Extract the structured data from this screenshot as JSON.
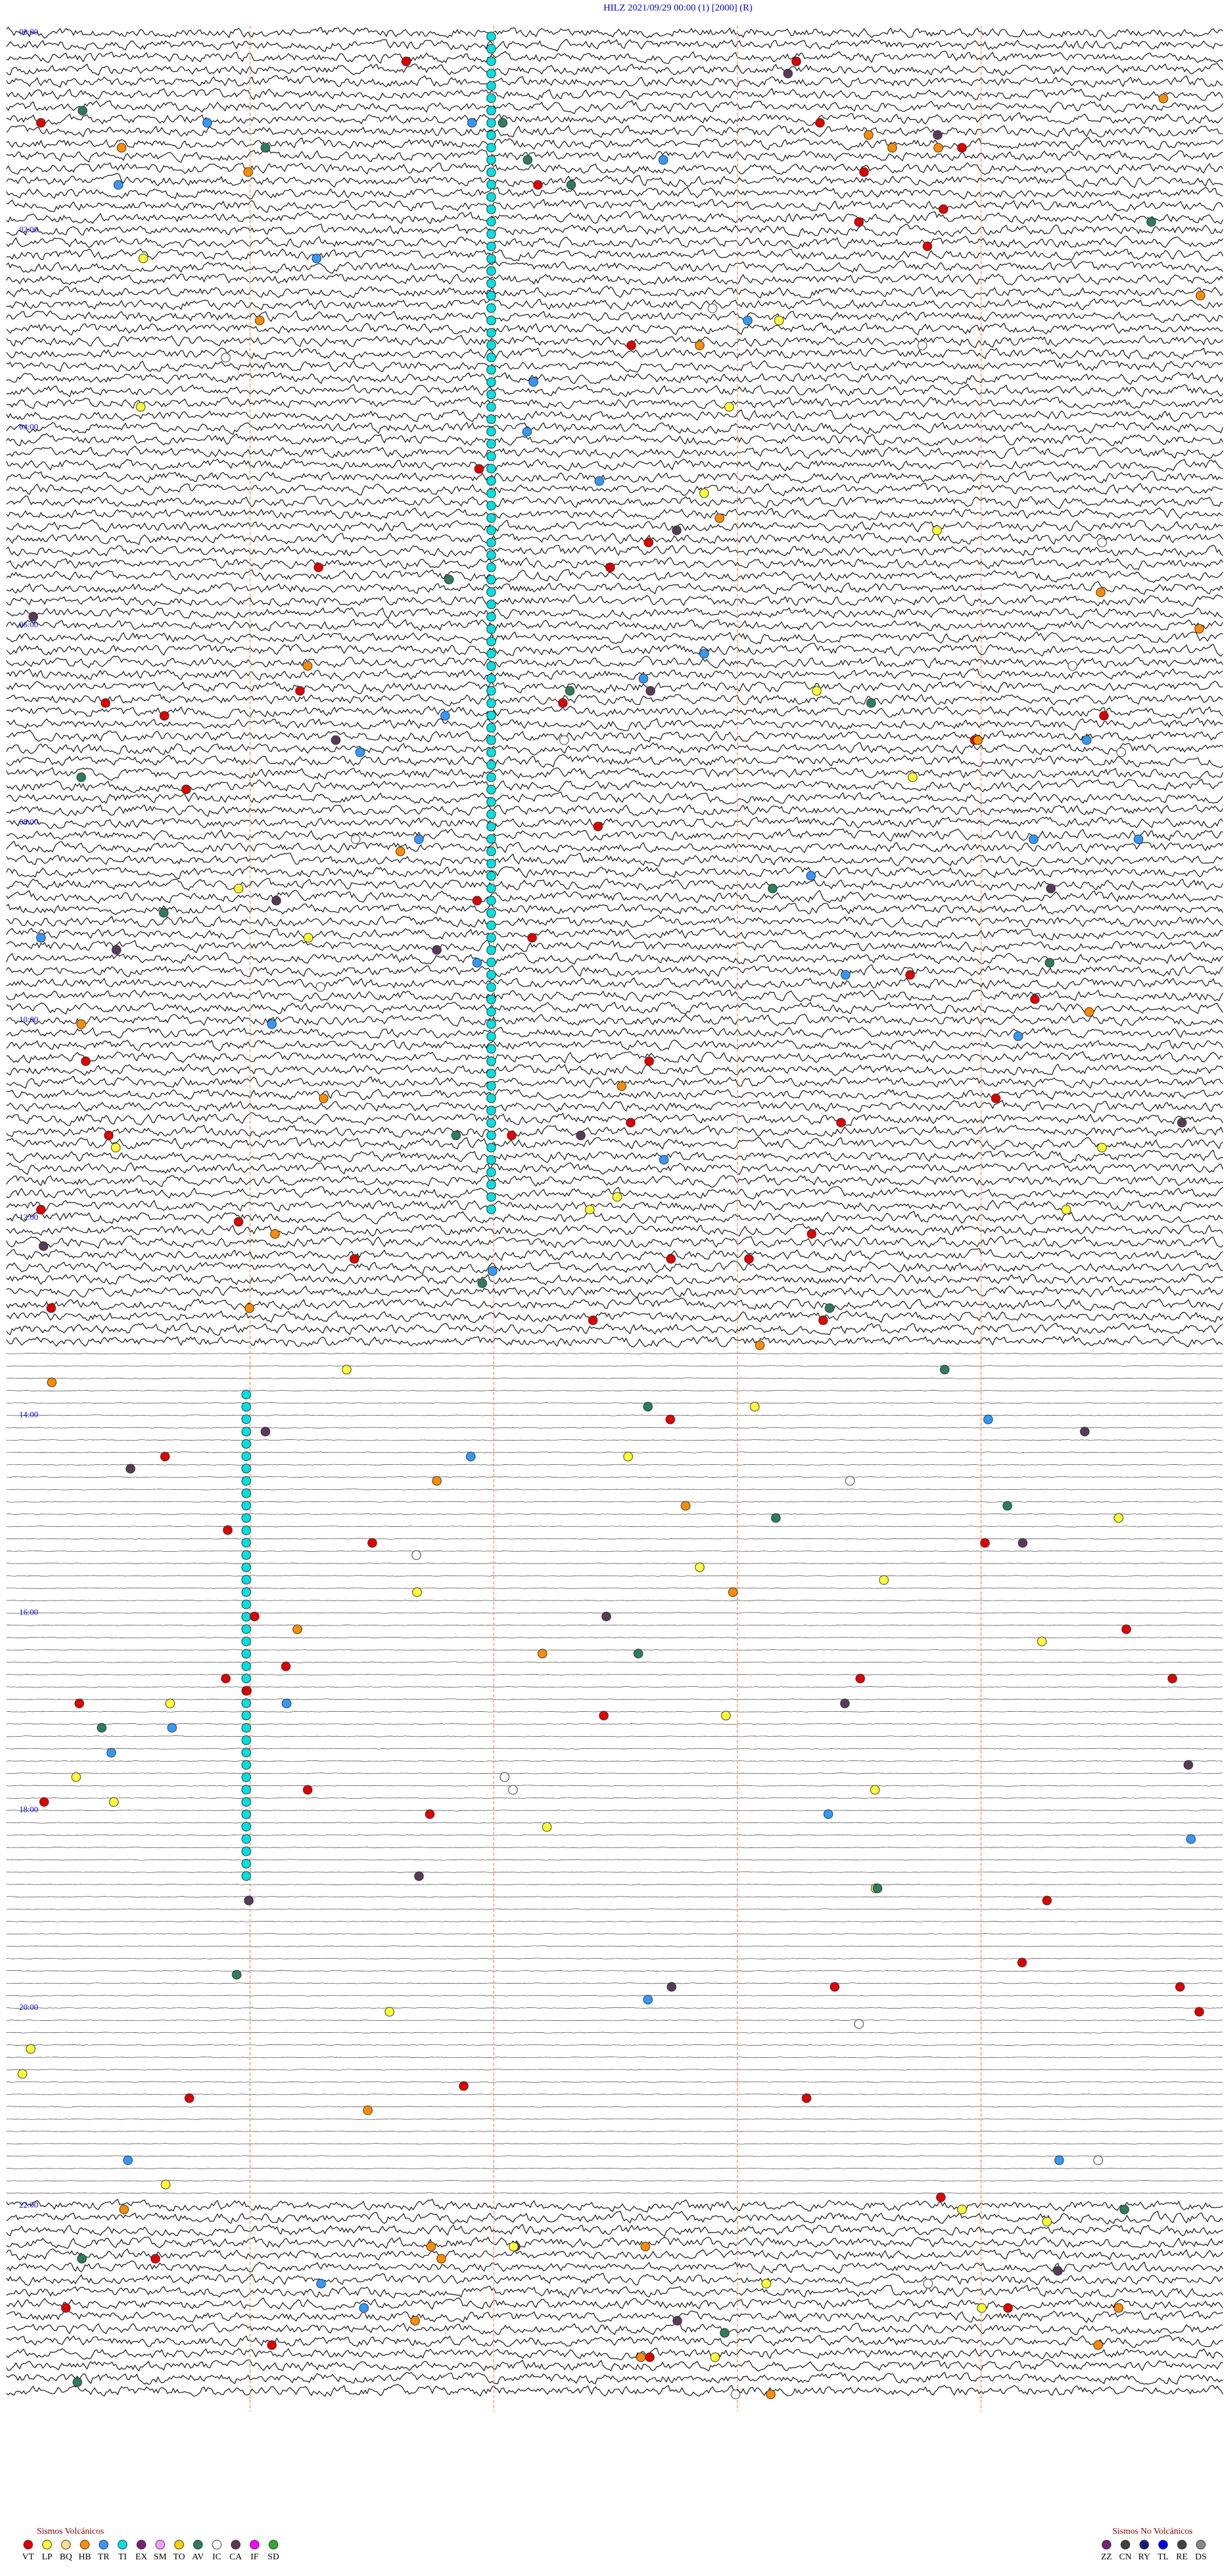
{
  "header": {
    "title": "HILZ    2021/09/29 00:00    (1)    [2000]    (R)"
  },
  "hour_labels": [
    "00:00",
    "02:00",
    "04:00",
    "06:00",
    "08:00",
    "10:00",
    "12:00",
    "14:00",
    "16:00",
    "18:00",
    "20:00",
    "22:00"
  ],
  "legend": {
    "volcanic": {
      "title": "Sismos Volcánicos",
      "items": [
        {
          "code": "VT",
          "color": "#e00000"
        },
        {
          "code": "LP",
          "color": "#ffff33"
        },
        {
          "code": "BQ",
          "color": "#ffe08a"
        },
        {
          "code": "HB",
          "color": "#ff8c00"
        },
        {
          "code": "TR",
          "color": "#3399ff"
        },
        {
          "code": "TI",
          "color": "#00e0e0"
        },
        {
          "code": "EX",
          "color": "#7a1f7a"
        },
        {
          "code": "SM",
          "color": "#ff99ff"
        },
        {
          "code": "TO",
          "color": "#ffcc00"
        },
        {
          "code": "AV",
          "color": "#2e7d5b"
        },
        {
          "code": "IC",
          "color": "#ffffff"
        },
        {
          "code": "CA",
          "color": "#5a3a5a"
        },
        {
          "code": "IF",
          "color": "#ff00ff"
        },
        {
          "code": "SD",
          "color": "#33aa33"
        }
      ]
    },
    "non_volcanic": {
      "title": "Sismos No Volcánicos",
      "items": [
        {
          "code": "ZZ",
          "color": "#7a1f7a"
        },
        {
          "code": "CN",
          "color": "#404040"
        },
        {
          "code": "RY",
          "color": "#1a1a80"
        },
        {
          "code": "TL",
          "color": "#0000ee"
        },
        {
          "code": "RE",
          "color": "#444444"
        },
        {
          "code": "DS",
          "color": "#888888"
        }
      ]
    }
  }
}
